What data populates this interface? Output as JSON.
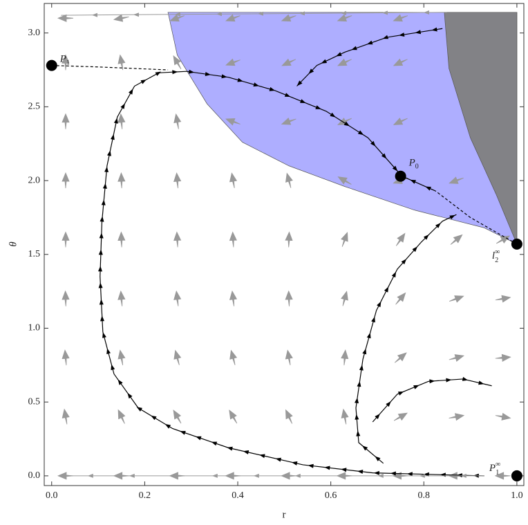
{
  "chart_data": {
    "type": "phase",
    "xlabel": "r",
    "ylabel": "θ",
    "xlim": [
      -0.016,
      1.015
    ],
    "ylim": [
      -0.066,
      3.2
    ],
    "xticks": [
      {
        "value": 0,
        "label": "0.0"
      },
      0.2,
      0.4,
      0.6,
      0.8,
      {
        "value": 1,
        "label": "1.0"
      }
    ],
    "yticks": [
      {
        "value": 0,
        "label": "0.0"
      },
      0.5,
      {
        "value": 1,
        "label": "1.0"
      },
      1.5,
      {
        "value": 2,
        "label": "2.0"
      },
      2.5,
      {
        "value": 3,
        "label": "3.0"
      }
    ],
    "regions": [
      {
        "color": "#aaaaff",
        "r": [
          0.25,
          0.27,
          0.334,
          0.41,
          0.51,
          0.63,
          0.78,
          0.93,
          1.0,
          1.0
        ],
        "theta": [
          3.14,
          2.85,
          2.52,
          2.26,
          2.1,
          1.96,
          1.8,
          1.68,
          1.57,
          3.14
        ]
      },
      {
        "color": "#808080",
        "r": [
          0.844,
          0.854,
          0.9,
          0.955,
          1.0,
          1.0
        ],
        "theta": [
          3.14,
          2.76,
          2.29,
          1.91,
          1.57,
          3.14
        ]
      }
    ],
    "field": {
      "color": "#999999",
      "r": [
        0.03,
        0.15,
        0.27,
        0.39,
        0.51,
        0.63,
        0.75,
        0.87,
        0.97
      ],
      "theta": [
        0.0,
        0.4,
        0.8,
        1.2,
        1.6,
        2.0,
        2.4,
        2.8,
        3.1
      ],
      "angle": [
        [
          180,
          180,
          180,
          180,
          180,
          180,
          180,
          180,
          180
        ],
        [
          100,
          115,
          120,
          120,
          115,
          100,
          30,
          10,
          -10
        ],
        [
          95,
          100,
          105,
          105,
          100,
          85,
          40,
          15,
          5
        ],
        [
          92,
          95,
          97,
          97,
          92,
          75,
          50,
          20,
          10
        ],
        [
          90,
          92,
          93,
          93,
          88,
          70,
          55,
          40,
          30
        ],
        [
          90,
          92,
          95,
          100,
          105,
          150,
          200,
          200,
          null
        ],
        [
          90,
          95,
          100,
          160,
          200,
          205,
          205,
          null,
          null
        ],
        [
          90,
          100,
          120,
          200,
          205,
          205,
          205,
          null,
          null
        ],
        [
          180,
          190,
          200,
          200,
          200,
          200,
          200,
          null,
          null
        ]
      ]
    },
    "trajectories": [
      {
        "color": "#000000",
        "style": "solid",
        "r": [
          0.93,
          0.69,
          0.54,
          0.38,
          0.26,
          0.186,
          0.134,
          0.11,
          0.104,
          0.108,
          0.119,
          0.141,
          0.178,
          0.23,
          0.29,
          0.38,
          0.48,
          0.59,
          0.68,
          0.753
        ],
        "theta": [
          0.0,
          0.02,
          0.075,
          0.19,
          0.32,
          0.46,
          0.69,
          0.975,
          1.35,
          1.72,
          2.1,
          2.43,
          2.64,
          2.73,
          2.74,
          2.7,
          2.61,
          2.47,
          2.29,
          2.03
        ]
      },
      {
        "color": "#000000",
        "style": "solid",
        "r": [
          0.713,
          0.66,
          0.654,
          0.669,
          0.698,
          0.743,
          0.795,
          0.84,
          0.87
        ],
        "theta": [
          0.085,
          0.225,
          0.46,
          0.79,
          1.12,
          1.4,
          1.585,
          1.725,
          1.77
        ]
      },
      {
        "color": "#000000",
        "style": "solid",
        "r": [
          0.84,
          0.72,
          0.63,
          0.57,
          0.527
        ],
        "theta": [
          3.03,
          2.97,
          2.87,
          2.78,
          2.64
        ]
      },
      {
        "color": "#000000",
        "style": "solid",
        "r": [
          0.69,
          0.743,
          0.81,
          0.884,
          0.946
        ],
        "theta": [
          0.365,
          0.553,
          0.64,
          0.656,
          0.61
        ]
      },
      {
        "color": "#000000",
        "style": "solid",
        "r": [
          0.825,
          0.753
        ],
        "theta": [
          1.93,
          2.03
        ]
      },
      {
        "color": "#000000",
        "style": "dashed",
        "r": [
          0.0,
          0.1,
          0.25
        ],
        "theta": [
          2.78,
          2.77,
          2.75
        ]
      },
      {
        "color": "#000000",
        "style": "dashed",
        "r": [
          1.0,
          0.9,
          0.825
        ],
        "theta": [
          1.57,
          1.75,
          1.93
        ]
      },
      {
        "color": "#999999",
        "style": "solid",
        "r": [
          0.85,
          0.02
        ],
        "theta": [
          3.14,
          3.12
        ]
      },
      {
        "color": "#999999",
        "style": "solid",
        "r": [
          0.93,
          0.03
        ],
        "theta": [
          0.0,
          0.0
        ]
      }
    ],
    "points": [
      {
        "r": 0.0,
        "theta": 2.78,
        "base": "P",
        "sub": "1"
      },
      {
        "r": 0.75,
        "theta": 2.03,
        "base": "P",
        "sub": "0"
      },
      {
        "r": 1.0,
        "theta": 1.57,
        "base": "l",
        "sub": "2",
        "sup": "∞"
      },
      {
        "r": 1.0,
        "theta": 0.0,
        "base": "P",
        "sub": "1",
        "sup": "∞"
      }
    ]
  }
}
